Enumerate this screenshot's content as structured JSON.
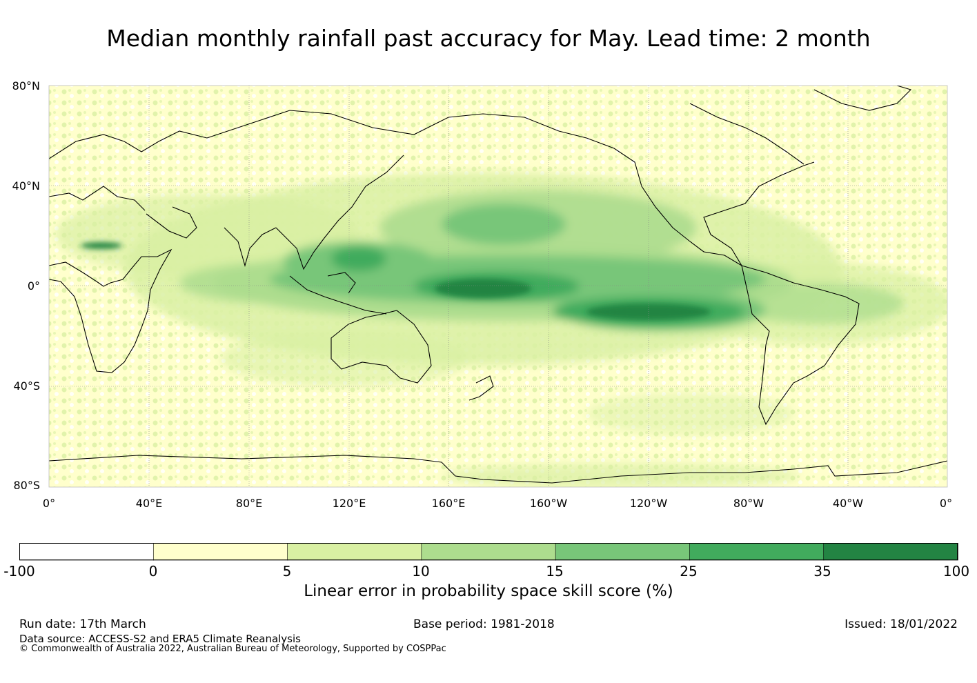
{
  "title": "Median monthly rainfall past accuracy for May. Lead time: 2 month",
  "map": {
    "lat_labels": [
      "80°N",
      "40°N",
      "0°",
      "40°S",
      "80°S"
    ],
    "lon_labels": [
      "0°",
      "40°E",
      "80°E",
      "120°E",
      "160°E",
      "160°W",
      "120°W",
      "80°W",
      "40°W",
      "0°"
    ],
    "skill_regions": [
      {
        "name": "equatorial-central-pacific",
        "level": 35
      },
      {
        "name": "south-equatorial-eastern-pacific",
        "level": 35
      },
      {
        "name": "western-pacific-warm-pool",
        "level": 25
      },
      {
        "name": "north-pacific-subtropics",
        "level": 15
      },
      {
        "name": "indian-ocean-equatorial",
        "level": 15
      },
      {
        "name": "tropical-atlantic",
        "level": 10
      },
      {
        "name": "sahel-patch",
        "level": 35
      }
    ]
  },
  "colorbar": {
    "label": "Linear error in probability space skill score (%)",
    "ticks": [
      "-100",
      "0",
      "5",
      "10",
      "15",
      "25",
      "35",
      "100"
    ],
    "colors": [
      "#ffffff",
      "#ffffcc",
      "#d9f0a3",
      "#addd8e",
      "#78c679",
      "#41ab5d",
      "#238443"
    ]
  },
  "footer": {
    "run_date": "Run date: 17th March",
    "base_period": "Base period: 1981-2018",
    "issued": "Issued: 18/01/2022",
    "data_source": "Data source: ACCESS-S2 and ERA5 Climate Reanalysis",
    "copyright": "© Commonwealth of Australia 2022, Australian Bureau of Meteorology, Supported by COSPPac"
  }
}
